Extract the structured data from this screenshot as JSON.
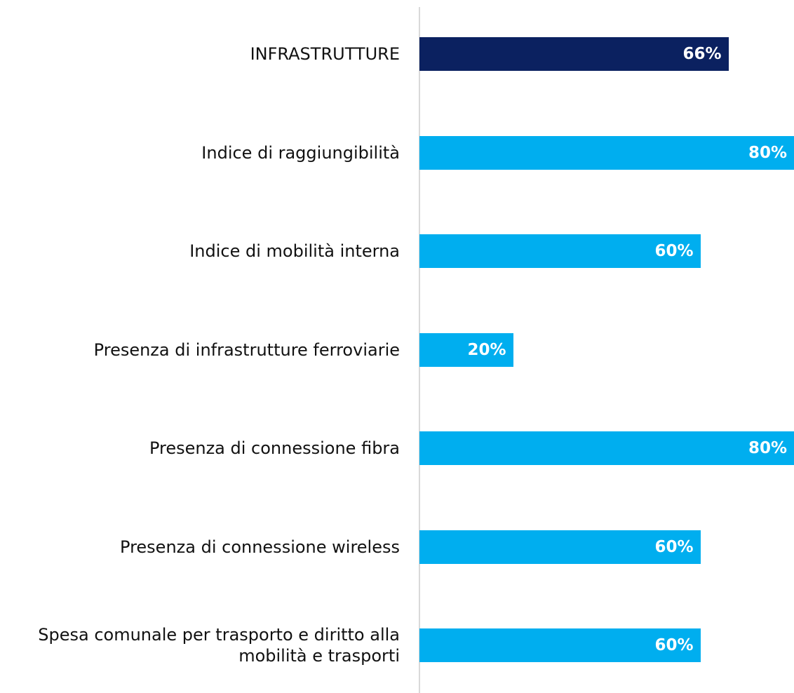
{
  "chart_data": {
    "type": "barh",
    "categories": [
      "INFRASTRUTTURE",
      "Indice di raggiungibilità",
      "Indice di mobilità interna",
      "Presenza di infrastrutture ferroviarie",
      "Presenza di connessione fibra",
      "Presenza di connessione wireless",
      "Spesa comunale per trasporto e diritto alla mobilità e trasporti"
    ],
    "values": [
      66,
      80,
      60,
      20,
      80,
      60,
      60
    ],
    "value_labels": [
      "66%",
      "80%",
      "60%",
      "20%",
      "80%",
      "60%",
      "60%"
    ],
    "colors": [
      "#0b2160",
      "#00aeef",
      "#00aeef",
      "#00aeef",
      "#00aeef",
      "#00aeef",
      "#00aeef"
    ],
    "xlim": [
      0,
      80
    ]
  }
}
